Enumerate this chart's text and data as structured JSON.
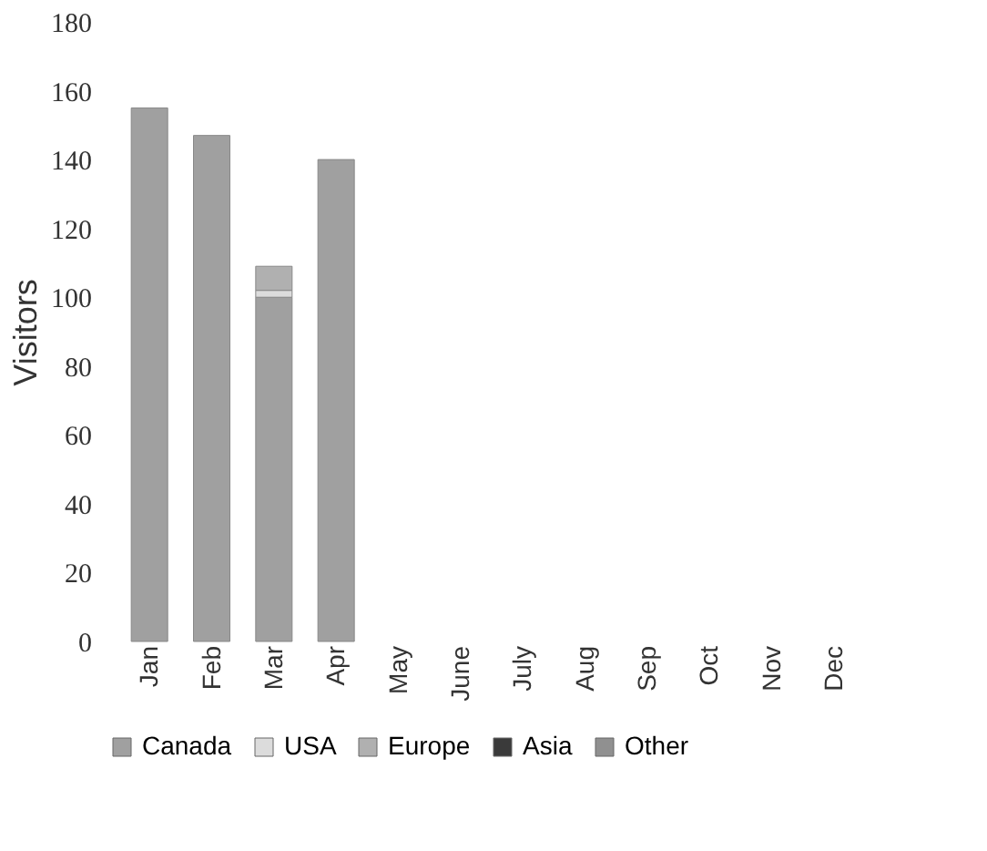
{
  "chart_data": {
    "type": "bar",
    "stacked": true,
    "ylabel": "Visitors",
    "categories": [
      "Jan",
      "Feb",
      "Mar",
      "Apr",
      "May",
      "June",
      "July",
      "Aug",
      "Sep",
      "Oct",
      "Nov",
      "Dec"
    ],
    "series": [
      {
        "name": "Canada",
        "color": "#a0a0a0",
        "values": [
          155,
          147,
          100,
          140,
          null,
          null,
          null,
          null,
          null,
          null,
          null,
          null
        ]
      },
      {
        "name": "USA",
        "color": "#dcdcdc",
        "values": [
          null,
          null,
          2,
          null,
          null,
          null,
          null,
          null,
          null,
          null,
          null,
          null
        ]
      },
      {
        "name": "Europe",
        "color": "#b0b0b0",
        "values": [
          null,
          null,
          7,
          null,
          null,
          null,
          null,
          null,
          null,
          null,
          null,
          null
        ]
      },
      {
        "name": "Asia",
        "color": "#3a3a3a",
        "values": [
          null,
          null,
          null,
          null,
          null,
          null,
          null,
          null,
          null,
          null,
          null,
          null
        ]
      },
      {
        "name": "Other",
        "color": "#909090",
        "values": [
          null,
          null,
          null,
          null,
          null,
          null,
          null,
          null,
          null,
          null,
          null,
          null
        ]
      }
    ],
    "ylim": [
      0,
      180
    ],
    "yticks": [
      0,
      20,
      40,
      60,
      80,
      100,
      120,
      140,
      160,
      180
    ],
    "grid": false,
    "legend": "bottom"
  }
}
